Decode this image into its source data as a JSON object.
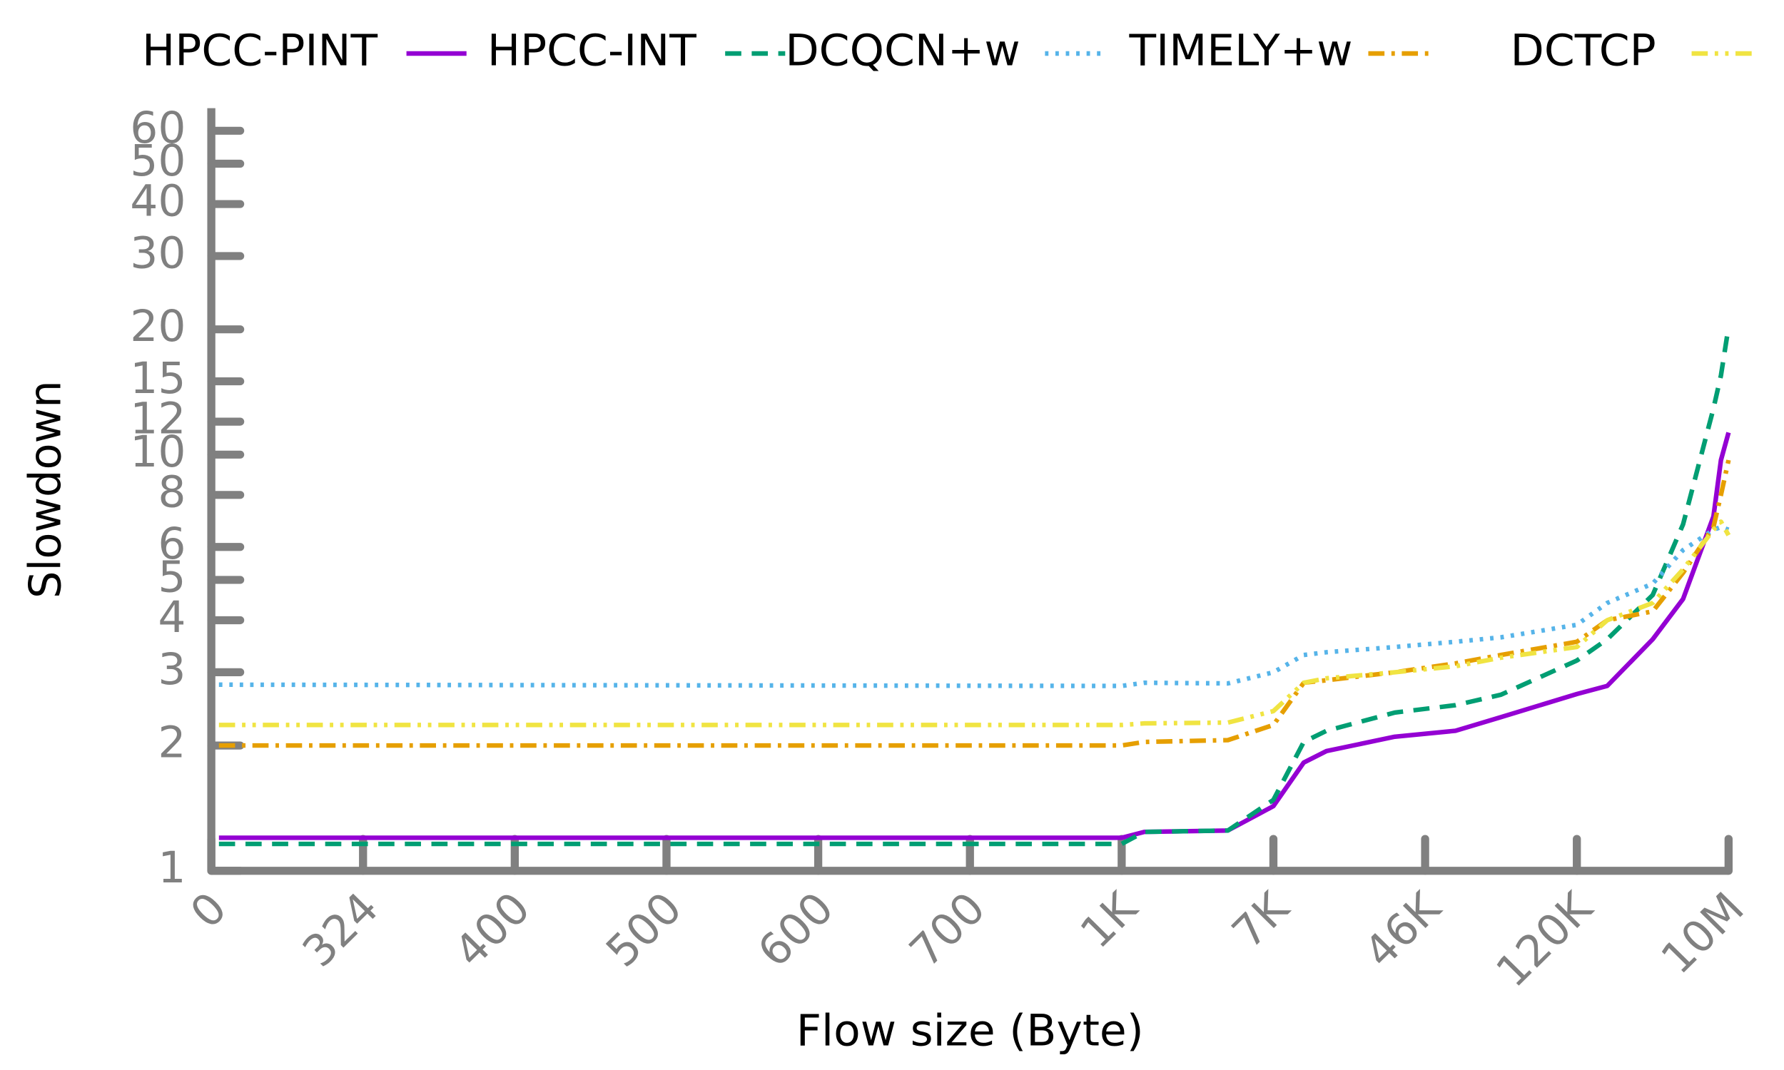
{
  "chart_data": {
    "type": "line",
    "x_label": "Flow size (Byte)",
    "y_label": "Slowdown",
    "legend": "top",
    "log_y": true,
    "xlim": [
      0,
      10
    ],
    "xticks": [
      0,
      {
        "value": 1,
        "label": "324"
      },
      {
        "value": 2,
        "label": "400"
      },
      {
        "value": 3,
        "label": "500"
      },
      {
        "value": 4,
        "label": "600"
      },
      {
        "value": 5,
        "label": "700"
      },
      {
        "value": 6,
        "label": "1K"
      },
      {
        "value": 7,
        "label": "7K"
      },
      {
        "value": 8,
        "label": "46K"
      },
      {
        "value": 9,
        "label": "120K"
      },
      {
        "value": 10,
        "label": "10M"
      }
    ],
    "ylim": [
      1,
      68
    ],
    "yticks": [
      1,
      2,
      3,
      4,
      5,
      6,
      8,
      10,
      12,
      15,
      20,
      30,
      40,
      50,
      60
    ],
    "x": [
      0.05,
      6,
      6.15,
      6.7,
      7,
      7.2,
      7.35,
      7.8,
      8.2,
      8.5,
      9,
      9.2,
      9.5,
      9.7,
      9.9,
      9.95,
      10
    ],
    "series": [
      {
        "name": "HPCC-PINT",
        "color": "#9400d3",
        "style": "solid",
        "values": [
          1.2,
          1.2,
          1.24,
          1.25,
          1.43,
          1.82,
          1.94,
          2.1,
          2.17,
          2.34,
          2.66,
          2.78,
          3.6,
          4.5,
          7.1,
          9.7,
          11.3
        ]
      },
      {
        "name": "HPCC-INT",
        "color": "#009e73",
        "style": "dashed",
        "values": [
          1.16,
          1.16,
          1.24,
          1.25,
          1.48,
          2.04,
          2.17,
          2.4,
          2.5,
          2.65,
          3.2,
          3.6,
          4.6,
          6.8,
          12.9,
          15.5,
          20.3
        ]
      },
      {
        "name": "DCQCN+w",
        "color": "#56b4e9",
        "style": "dotted",
        "values": [
          2.8,
          2.78,
          2.83,
          2.82,
          3.0,
          3.3,
          3.35,
          3.45,
          3.55,
          3.64,
          3.9,
          4.4,
          4.9,
          5.9,
          6.6,
          6.7,
          6.6
        ]
      },
      {
        "name": "TIMELY+w",
        "color": "#e69f00",
        "style": "dashdot",
        "values": [
          2.0,
          2.0,
          2.04,
          2.06,
          2.24,
          2.83,
          2.87,
          3.0,
          3.15,
          3.3,
          3.55,
          4.0,
          4.2,
          5.2,
          6.7,
          8,
          9.7
        ]
      },
      {
        "name": "DCTCP",
        "color": "#f0e442",
        "style": "dashdotdot",
        "values": [
          2.24,
          2.24,
          2.26,
          2.27,
          2.42,
          2.83,
          2.9,
          3.0,
          3.1,
          3.25,
          3.45,
          4.0,
          4.4,
          5.3,
          6.6,
          6.9,
          6.4
        ]
      }
    ]
  }
}
